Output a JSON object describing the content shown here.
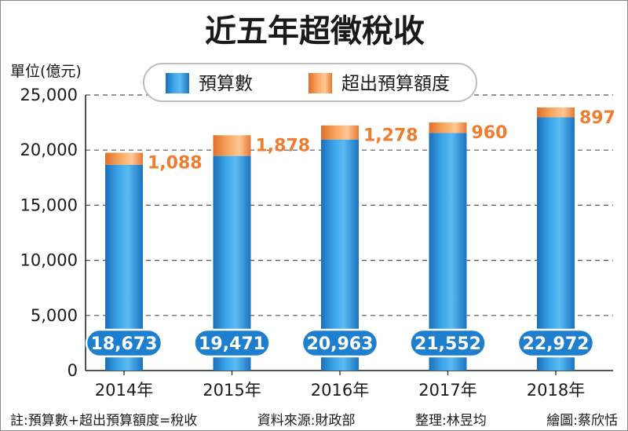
{
  "chart_data": {
    "type": "bar",
    "title": "近五年超徵稅收",
    "ylabel": "單位(億元)",
    "categories": [
      "2014年",
      "2015年",
      "2016年",
      "2017年",
      "2018年"
    ],
    "series": [
      {
        "name": "預算數",
        "values": [
          18673,
          19471,
          20963,
          21552,
          22972
        ],
        "color": "#2f8fd6"
      },
      {
        "name": "超出預算額度",
        "values": [
          1088,
          1878,
          1278,
          960,
          897
        ],
        "color": "#f08a3c"
      }
    ],
    "stacked": true,
    "budget_labels": [
      "18,673",
      "19,471",
      "20,963",
      "21,552",
      "22,972"
    ],
    "excess_labels": [
      "1,088",
      "1,878",
      "1,278",
      "960",
      "897"
    ],
    "yticks": [
      0,
      5000,
      10000,
      15000,
      20000,
      25000
    ],
    "ytick_labels": [
      "0",
      "5,000",
      "10,000",
      "15,000",
      "20,000",
      "25,000"
    ],
    "ylim": [
      0,
      25000
    ],
    "grid": true,
    "legend_position": "top-center"
  },
  "footnote": {
    "note": "註:預算數+超出預算額度=稅收",
    "source": "資料來源:財政部",
    "editor": "整理:林昱均",
    "artist": "繪圖:蔡欣恬"
  }
}
